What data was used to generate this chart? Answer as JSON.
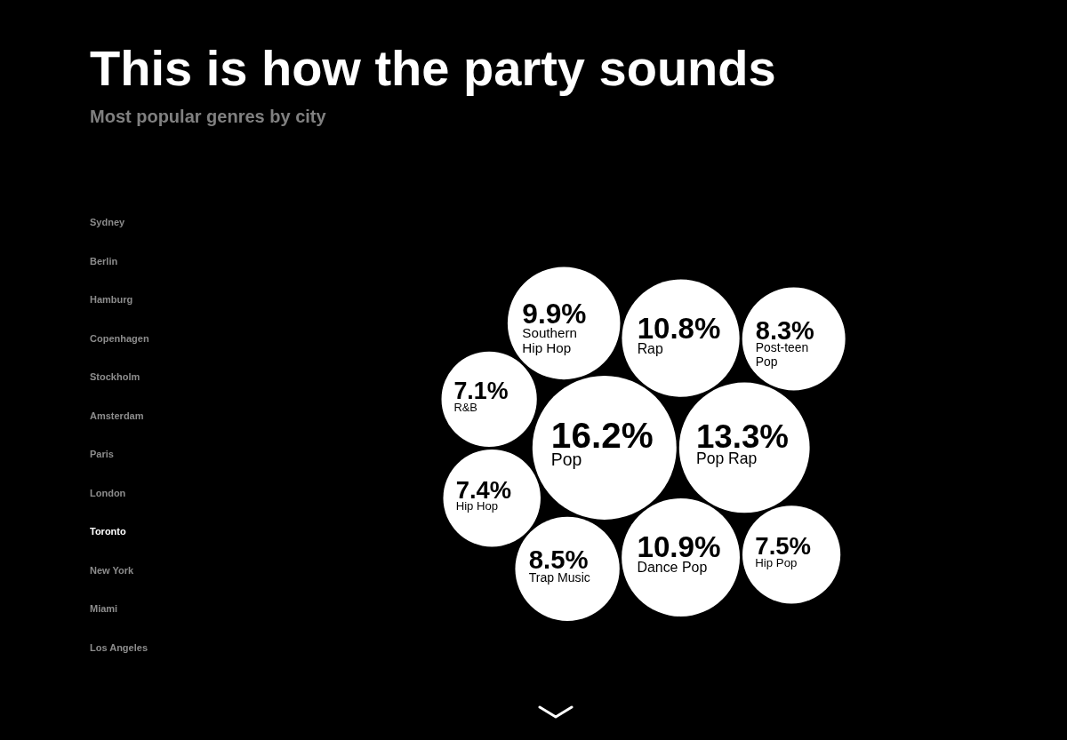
{
  "chart_data": [
    {
      "type": "other",
      "title": "This is how the party sounds",
      "subtitle": "Most popular genres by city",
      "categories": [
        "Sydney",
        "Berlin",
        "Hamburg",
        "Copenhagen",
        "Stockholm",
        "Amsterdam",
        "Paris",
        "London",
        "Toronto",
        "New York",
        "Miami",
        "Los Angeles"
      ],
      "colors": [
        "#8c8c8c",
        "#8c8c8c",
        "#8c8c8c",
        "#8c8c8c",
        "#8c8c8c",
        "#8c8c8c",
        "#8c8c8c",
        "#8c8c8c",
        "#ffffff",
        "#8c8c8c",
        "#8c8c8c",
        "#8c8c8c"
      ]
    },
    {
      "type": "other",
      "categories": [
        "Pop",
        "Pop Rap",
        "Dance Pop",
        "Rap",
        "Southern Hip Hop",
        "Trap Music",
        "Post-teen Pop",
        "Hip Pop",
        "Hip Hop",
        "R&B"
      ],
      "values": [
        16.2,
        13.3,
        10.9,
        10.8,
        9.9,
        8.5,
        8.3,
        7.5,
        7.4,
        7.1
      ],
      "value_labels": [
        "16.2%",
        "13.3%",
        "10.9%",
        "10.8%",
        "9.9%",
        "8.5%",
        "8.3%",
        "7.5%",
        "7.4%",
        "7.1%"
      ],
      "colors": [
        "#ffffff",
        "#ffffff",
        "#ffffff",
        "#ffffff",
        "#ffffff",
        "#ffffff",
        "#ffffff",
        "#ffffff",
        "#ffffff",
        "#ffffff"
      ]
    }
  ]
}
